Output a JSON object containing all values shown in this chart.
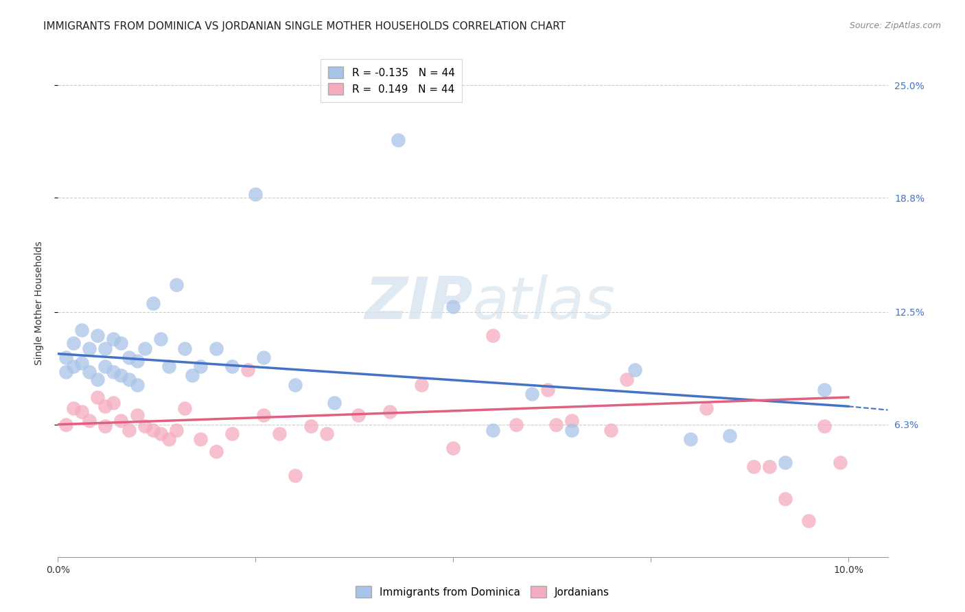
{
  "title": "IMMIGRANTS FROM DOMINICA VS JORDANIAN SINGLE MOTHER HOUSEHOLDS CORRELATION CHART",
  "source": "Source: ZipAtlas.com",
  "ylabel": "Single Mother Households",
  "xlim": [
    0.0,
    0.105
  ],
  "ylim": [
    -0.01,
    0.27
  ],
  "xticks": [
    0.0,
    0.025,
    0.05,
    0.075,
    0.1
  ],
  "xtick_labels": [
    "0.0%",
    "",
    "",
    "",
    "10.0%"
  ],
  "ytick_labels_right": [
    "25.0%",
    "18.8%",
    "12.5%",
    "6.3%"
  ],
  "ytick_positions_right": [
    0.25,
    0.188,
    0.125,
    0.063
  ],
  "blue_R": "-0.135",
  "blue_N": "44",
  "pink_R": "0.149",
  "pink_N": "44",
  "blue_color": "#a8c4e8",
  "pink_color": "#f5abbe",
  "blue_line_color": "#4472c4",
  "pink_line_color": "#e06080",
  "blue_line_y0": 0.102,
  "blue_line_y1": 0.073,
  "pink_line_y0": 0.063,
  "pink_line_y1": 0.078,
  "blue_points_x": [
    0.001,
    0.001,
    0.002,
    0.002,
    0.003,
    0.003,
    0.004,
    0.004,
    0.005,
    0.005,
    0.006,
    0.006,
    0.007,
    0.007,
    0.008,
    0.008,
    0.009,
    0.009,
    0.01,
    0.01,
    0.011,
    0.012,
    0.013,
    0.014,
    0.015,
    0.016,
    0.017,
    0.018,
    0.02,
    0.022,
    0.025,
    0.026,
    0.03,
    0.035,
    0.043,
    0.05,
    0.055,
    0.06,
    0.065,
    0.073,
    0.08,
    0.085,
    0.092,
    0.097
  ],
  "blue_points_y": [
    0.1,
    0.092,
    0.108,
    0.095,
    0.115,
    0.097,
    0.105,
    0.092,
    0.112,
    0.088,
    0.105,
    0.095,
    0.11,
    0.092,
    0.108,
    0.09,
    0.1,
    0.088,
    0.098,
    0.085,
    0.105,
    0.13,
    0.11,
    0.095,
    0.14,
    0.105,
    0.09,
    0.095,
    0.105,
    0.095,
    0.19,
    0.1,
    0.085,
    0.075,
    0.22,
    0.128,
    0.06,
    0.08,
    0.06,
    0.093,
    0.055,
    0.057,
    0.042,
    0.082
  ],
  "pink_points_x": [
    0.001,
    0.002,
    0.003,
    0.004,
    0.005,
    0.006,
    0.006,
    0.007,
    0.008,
    0.009,
    0.01,
    0.011,
    0.012,
    0.013,
    0.014,
    0.015,
    0.016,
    0.018,
    0.02,
    0.022,
    0.024,
    0.026,
    0.028,
    0.03,
    0.032,
    0.034,
    0.038,
    0.042,
    0.046,
    0.05,
    0.055,
    0.058,
    0.062,
    0.063,
    0.065,
    0.07,
    0.072,
    0.082,
    0.088,
    0.09,
    0.092,
    0.095,
    0.097,
    0.099
  ],
  "pink_points_y": [
    0.063,
    0.072,
    0.07,
    0.065,
    0.078,
    0.073,
    0.062,
    0.075,
    0.065,
    0.06,
    0.068,
    0.062,
    0.06,
    0.058,
    0.055,
    0.06,
    0.072,
    0.055,
    0.048,
    0.058,
    0.093,
    0.068,
    0.058,
    0.035,
    0.062,
    0.058,
    0.068,
    0.07,
    0.085,
    0.05,
    0.112,
    0.063,
    0.082,
    0.063,
    0.065,
    0.06,
    0.088,
    0.072,
    0.04,
    0.04,
    0.022,
    0.01,
    0.062,
    0.042
  ],
  "background_color": "#ffffff",
  "grid_color": "#cccccc",
  "title_fontsize": 11,
  "axis_label_fontsize": 10,
  "tick_fontsize": 10,
  "legend_fontsize": 11
}
